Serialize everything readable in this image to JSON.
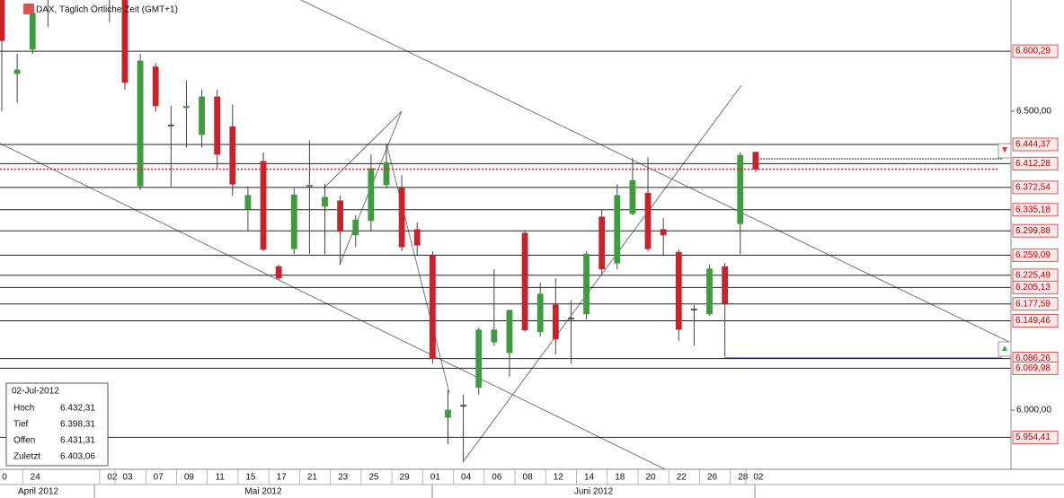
{
  "chart_data": {
    "type": "candlestick",
    "title": "DAX, Täglich Örtliche Zeit (GMT+1)",
    "categories": [
      "0",
      null,
      "24",
      null,
      null,
      null,
      null,
      "02",
      "03",
      null,
      "07",
      null,
      "09",
      null,
      "11",
      null,
      "15",
      null,
      "17",
      null,
      "21",
      null,
      "23",
      null,
      "25",
      null,
      "29",
      null,
      "01",
      null,
      "04",
      null,
      "06",
      null,
      "08",
      null,
      "12",
      null,
      "14",
      null,
      "18",
      null,
      "20",
      null,
      "22",
      null,
      "26",
      null,
      "28",
      "02"
    ],
    "open": [
      6690,
      6563,
      6604,
      6700,
      null,
      null,
      null,
      6700,
      6690,
      6375,
      6574,
      6477,
      6506,
      6461,
      6524,
      6474,
      6336,
      6416,
      6240,
      6270,
      6374,
      6341,
      6350,
      6293,
      6317,
      6377,
      6371,
      6302,
      6258,
      5988,
      6007,
      6038,
      6114,
      6096,
      6296,
      6131,
      6176,
      6153,
      6161,
      6323,
      6246,
      6329,
      6363,
      6302,
      6264,
      6168,
      6161,
      6240,
      6312,
      6431.31
    ],
    "high": [
      6700,
      6596,
      6679,
      6720,
      null,
      null,
      null,
      6720,
      6700,
      6596,
      6581,
      6509,
      6551,
      6536,
      6536,
      6511,
      6374,
      6431,
      6243,
      6371,
      6451,
      6378,
      6359,
      6326,
      6428,
      6446,
      6393,
      6314,
      6266,
      6033,
      6026,
      6138,
      6236,
      6168,
      6299,
      6213,
      6221,
      6183,
      6266,
      6336,
      6378,
      6422,
      6423,
      6321,
      6269,
      6176,
      6243,
      6246,
      6431,
      6432.31
    ],
    "low": [
      6500,
      6514,
      6596,
      6641,
      null,
      null,
      null,
      6649,
      6536,
      6368,
      6499,
      6374,
      6439,
      6439,
      6404,
      6359,
      6299,
      6266,
      6218,
      6261,
      6261,
      6261,
      6243,
      6273,
      6299,
      6371,
      6266,
      6258,
      6078,
      5943,
      5913,
      6026,
      6108,
      6056,
      6131,
      6123,
      6093,
      6078,
      6152,
      6228,
      6236,
      6326,
      6266,
      6258,
      6116,
      6108,
      6158,
      6089,
      6261,
      6398.31
    ],
    "close": [
      6618,
      6569,
      6664,
      6710,
      null,
      null,
      null,
      6710,
      6548,
      6584,
      6509,
      6476,
      6508,
      6524,
      6428,
      6378,
      6359,
      6269,
      6221,
      6360,
      6376,
      6356,
      6299,
      6318,
      6404,
      6414,
      6273,
      6276,
      6086,
      6000,
      6008,
      6134,
      6134,
      6167,
      6134,
      6194,
      6119,
      6154,
      6261,
      6236,
      6359,
      6384,
      6270,
      6293,
      6135,
      6169,
      6236,
      6179,
      6426,
      6403.06
    ],
    "up_color": "#3f9b3f",
    "down_color": "#c8232c",
    "ylim": [
      5901,
      6686
    ],
    "yticks": [
      {
        "value": 6000,
        "label": "6.000,00"
      },
      {
        "value": 6500,
        "label": "6.500,00"
      }
    ],
    "levels": [
      {
        "value": 6600.29,
        "label": "6.600,29"
      },
      {
        "value": 6444.37,
        "label": "6.444,37"
      },
      {
        "value": 6412.28,
        "label": "6.412,28"
      },
      {
        "value": 6372.54,
        "label": "6.372,54"
      },
      {
        "value": 6335.18,
        "label": "6.335,18"
      },
      {
        "value": 6299.88,
        "label": "6.299,88"
      },
      {
        "value": 6259.09,
        "label": "6.259,09"
      },
      {
        "value": 6225.49,
        "label": "6.225,49"
      },
      {
        "value": 6205.13,
        "label": "6.205,13"
      },
      {
        "value": 6177.59,
        "label": "6.177,59"
      },
      {
        "value": 6149.46,
        "label": "6.149,46"
      },
      {
        "value": 6086.26,
        "label": "6.086,26"
      },
      {
        "value": 6069.98,
        "label": "6.069,98"
      },
      {
        "value": 5954.41,
        "label": "5.954,41"
      }
    ],
    "months": [
      "April 2012",
      "Mai 2012",
      "Juni 2012"
    ],
    "info_box": {
      "date": "02-Jul-2012",
      "rows": [
        {
          "label": "Hoch",
          "value": "6.432,31"
        },
        {
          "label": "Tief",
          "value": "6.398,31"
        },
        {
          "label": "Offen",
          "value": "6.431,31"
        },
        {
          "label": "Zuletzt",
          "value": "6.403,06"
        }
      ]
    }
  }
}
